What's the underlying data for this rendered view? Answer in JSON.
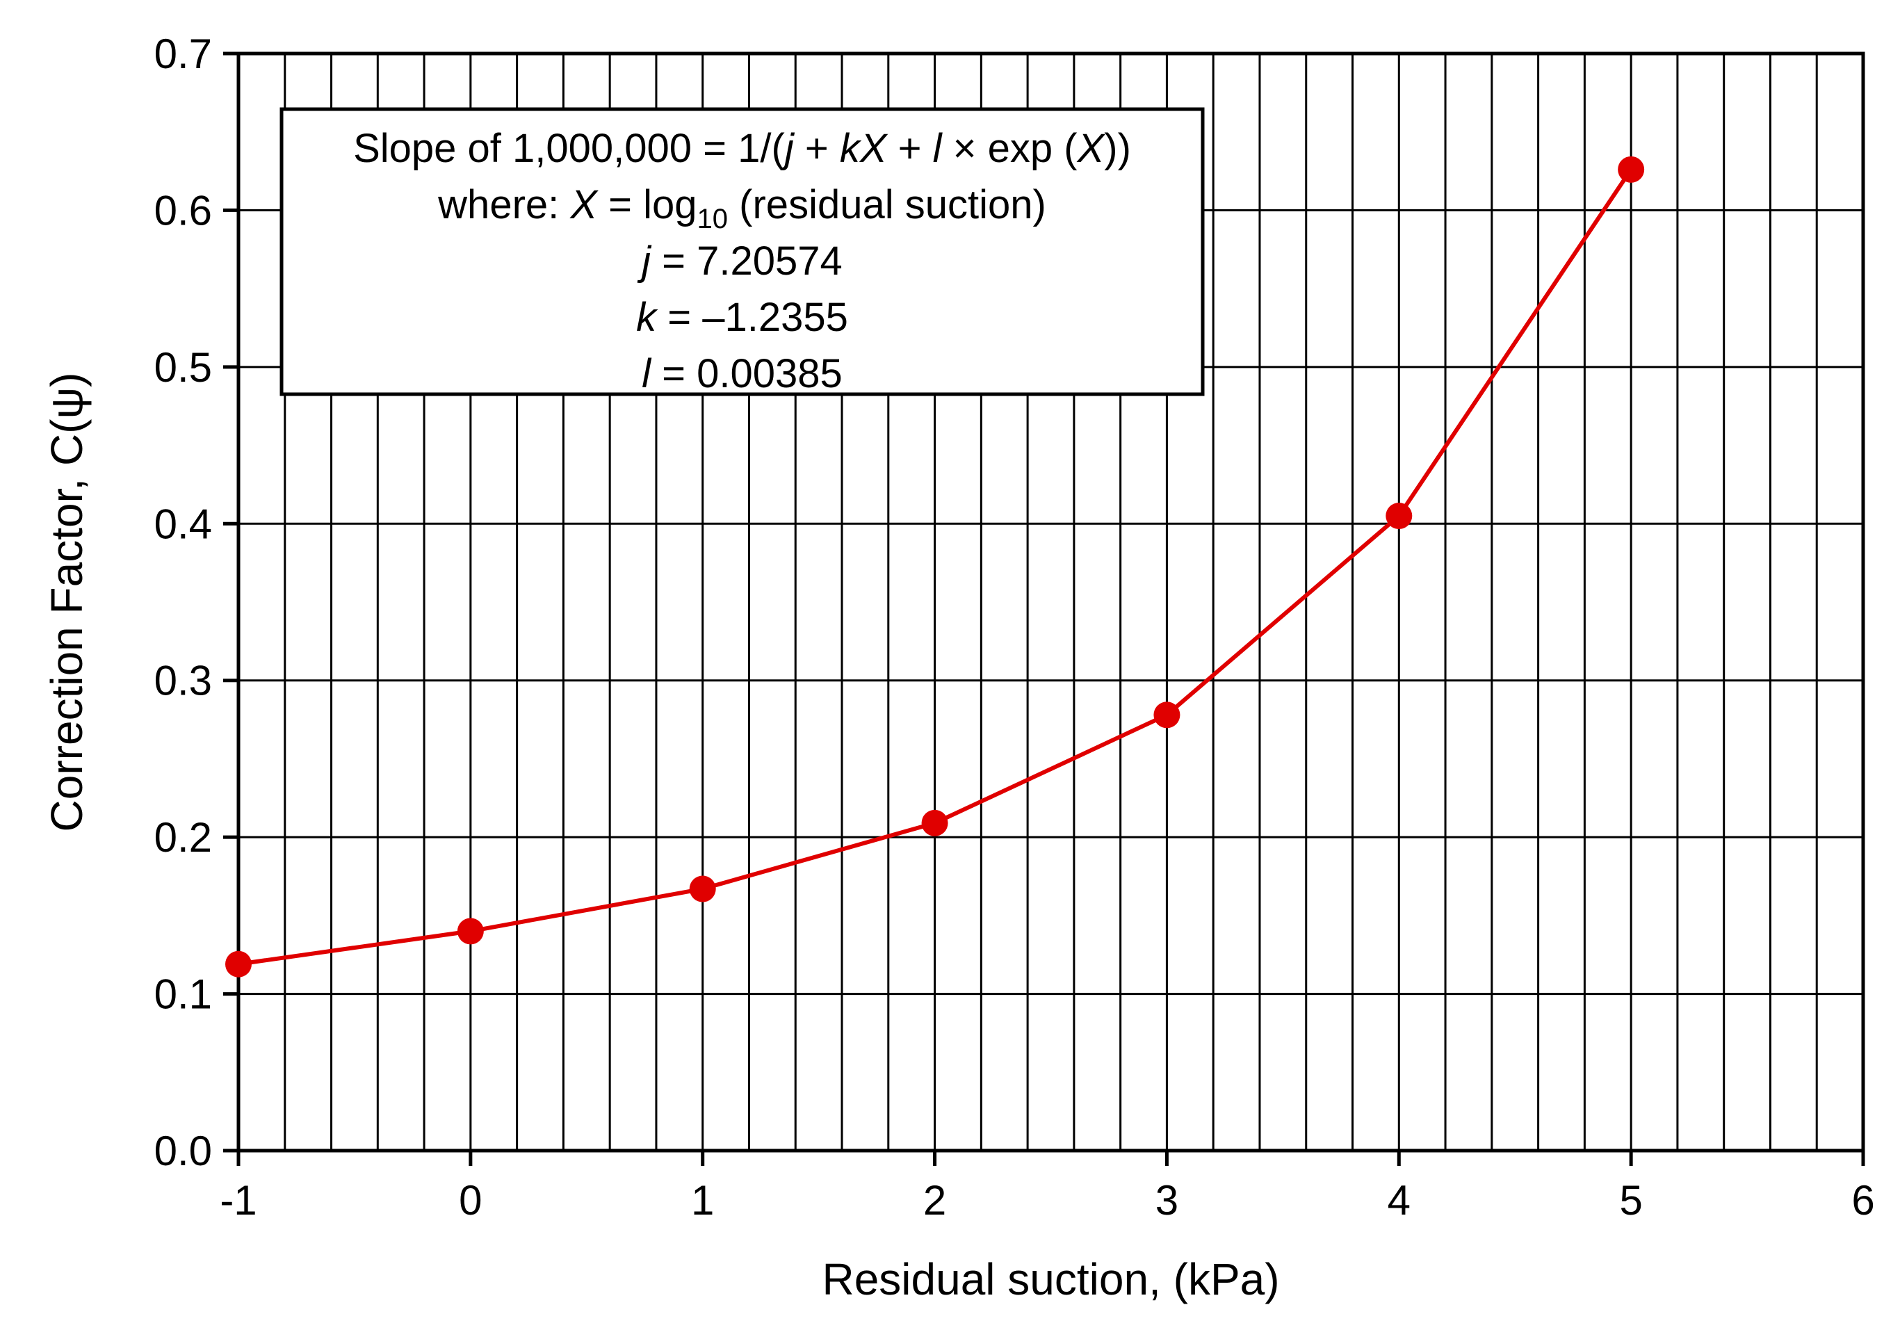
{
  "chart_data": {
    "type": "line",
    "title": "",
    "xlabel": "Residual suction, (kPa)",
    "ylabel": "Correction Factor, C(ψ)",
    "xlim": [
      -1,
      6
    ],
    "ylim": [
      0,
      0.7
    ],
    "x_ticks": [
      "-1",
      "0",
      "1",
      "2",
      "3",
      "4",
      "5",
      "6"
    ],
    "y_ticks": [
      "0.0",
      "0.1",
      "0.2",
      "0.3",
      "0.4",
      "0.5",
      "0.6",
      "0.7"
    ],
    "x_minor_step": 0.2,
    "y_major_step": 0.1,
    "grid": true,
    "legend": "none",
    "series": [
      {
        "color": "#e00000",
        "x": [
          -1,
          0,
          1,
          2,
          3,
          4,
          5
        ],
        "y": [
          0.119,
          0.14,
          0.167,
          0.209,
          0.278,
          0.405,
          0.626
        ]
      }
    ],
    "annotation": {
      "line1": {
        "a": "Slope of 1,000,000 = 1/(",
        "b": "j",
        "c": " + ",
        "d": "kX",
        "e": " + ",
        "f": "l",
        "g": " × exp (",
        "h": "X",
        "i": "))"
      },
      "line2": {
        "a": "where: ",
        "b": "X",
        "c": " = log",
        "sub": "10",
        "d": " (residual suction)"
      },
      "line3": {
        "var": "j",
        "rest": " = 7.20574"
      },
      "line4": {
        "var": "k",
        "rest": " = –1.2355"
      },
      "line5": {
        "var": "l",
        "rest": " = 0.00385"
      }
    }
  }
}
